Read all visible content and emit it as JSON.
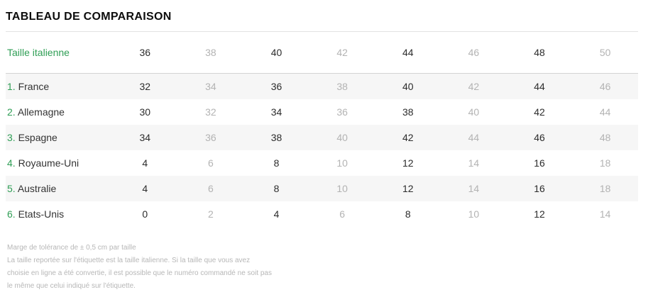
{
  "title": "TABLEAU DE COMPARAISON",
  "table": {
    "header": {
      "label": "Taille italienne",
      "sizes": [
        "36",
        "38",
        "40",
        "42",
        "44",
        "46",
        "48",
        "50"
      ]
    },
    "rows": [
      {
        "index": "1.",
        "name": "France",
        "values": [
          "32",
          "34",
          "36",
          "38",
          "40",
          "42",
          "44",
          "46"
        ]
      },
      {
        "index": "2.",
        "name": "Allemagne",
        "values": [
          "30",
          "32",
          "34",
          "36",
          "38",
          "40",
          "42",
          "44"
        ]
      },
      {
        "index": "3.",
        "name": "Espagne",
        "values": [
          "34",
          "36",
          "38",
          "40",
          "42",
          "44",
          "46",
          "48"
        ]
      },
      {
        "index": "4.",
        "name": "Royaume-Uni",
        "values": [
          "4",
          "6",
          "8",
          "10",
          "12",
          "14",
          "16",
          "18"
        ]
      },
      {
        "index": "5.",
        "name": "Australie",
        "values": [
          "4",
          "6",
          "8",
          "10",
          "12",
          "14",
          "16",
          "18"
        ]
      },
      {
        "index": "6.",
        "name": "Etats-Unis",
        "values": [
          "0",
          "2",
          "4",
          "6",
          "8",
          "10",
          "12",
          "14"
        ]
      }
    ]
  },
  "footer": {
    "lines": [
      "Marge de tolérance de ± 0,5 cm par taille",
      "La taille reportée sur l'étiquette est la taille italienne. Si la taille que vous avez",
      "choisie en ligne a été convertie, il est possible que le numéro commandé ne soit pas",
      "le même que celui indiqué sur l'étiquette."
    ]
  },
  "colors": {
    "accent_green": "#2f9e55",
    "dark_text": "#2c2c2c",
    "muted_number": "#b3b3b3",
    "stripe_bg": "#f6f6f6",
    "footer_text": "#b7b7b7"
  }
}
